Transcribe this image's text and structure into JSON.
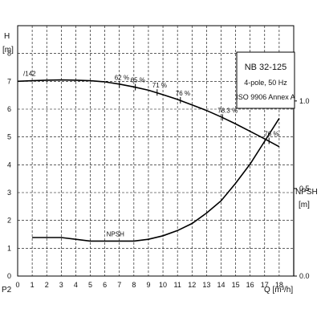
{
  "chart_data": {
    "type": "line",
    "title": "NB 32-125",
    "subtitle": "4-pole, 50 Hz",
    "standard": "ISO 9906 Annex A",
    "xlabel": "Q [m³/h]",
    "ylabel_left": "H",
    "ylabel_left_unit": "[m]",
    "ylabel_right": "NPSH",
    "ylabel_right_unit": "[m]",
    "p2_label": "P2",
    "xlim": [
      0,
      19
    ],
    "ylim_left": [
      0,
      9
    ],
    "ylim_right": [
      0,
      1.43
    ],
    "x_ticks": [
      "0",
      "1",
      "2",
      "3",
      "4",
      "5",
      "6",
      "7",
      "8",
      "9",
      "10",
      "11",
      "12",
      "13",
      "14",
      "15",
      "16",
      "17",
      "18"
    ],
    "y_ticks_left": [
      "0",
      "1",
      "2",
      "3",
      "4",
      "5",
      "6",
      "7",
      "8"
    ],
    "y_ticks_right": [
      "0.0",
      "0.5",
      "1.0"
    ],
    "grid": true,
    "series": [
      {
        "name": "",
        "axis": "left",
        "color": "#000000",
        "x": [
          0,
          1,
          2,
          3,
          4,
          5,
          6,
          7,
          8,
          9,
          10,
          11,
          12,
          13,
          14,
          15,
          16,
          17,
          18
        ],
        "y": [
          7.0,
          7.02,
          7.04,
          7.05,
          7.04,
          7.02,
          6.98,
          6.9,
          6.8,
          6.68,
          6.52,
          6.35,
          6.15,
          5.95,
          5.72,
          5.47,
          5.2,
          4.93,
          4.65
        ]
      },
      {
        "name": "NPSH",
        "axis": "right",
        "color": "#000000",
        "x": [
          1,
          2,
          3,
          4,
          5,
          6,
          7,
          8,
          9,
          10,
          11,
          12,
          13,
          14,
          15,
          16,
          17,
          18
        ],
        "y": [
          0.22,
          0.22,
          0.22,
          0.21,
          0.2,
          0.2,
          0.2,
          0.2,
          0.21,
          0.23,
          0.26,
          0.3,
          0.36,
          0.43,
          0.53,
          0.64,
          0.77,
          0.9
        ]
      }
    ],
    "annotations": [
      {
        "label": "/142",
        "x": 0.5,
        "y": 7.02,
        "marker": false
      },
      {
        "label": "62 %",
        "x": 7.0,
        "y": 6.88,
        "marker": true
      },
      {
        "label": "65 %",
        "x": 8.1,
        "y": 6.79,
        "marker": true
      },
      {
        "label": "71 %",
        "x": 9.6,
        "y": 6.6,
        "marker": true
      },
      {
        "label": "76 %",
        "x": 11.2,
        "y": 6.32,
        "marker": true
      },
      {
        "label": "78.3 %",
        "x": 14.1,
        "y": 5.7,
        "marker": true
      },
      {
        "label": "76 %",
        "x": 17.3,
        "y": 4.86,
        "marker": true
      }
    ]
  }
}
